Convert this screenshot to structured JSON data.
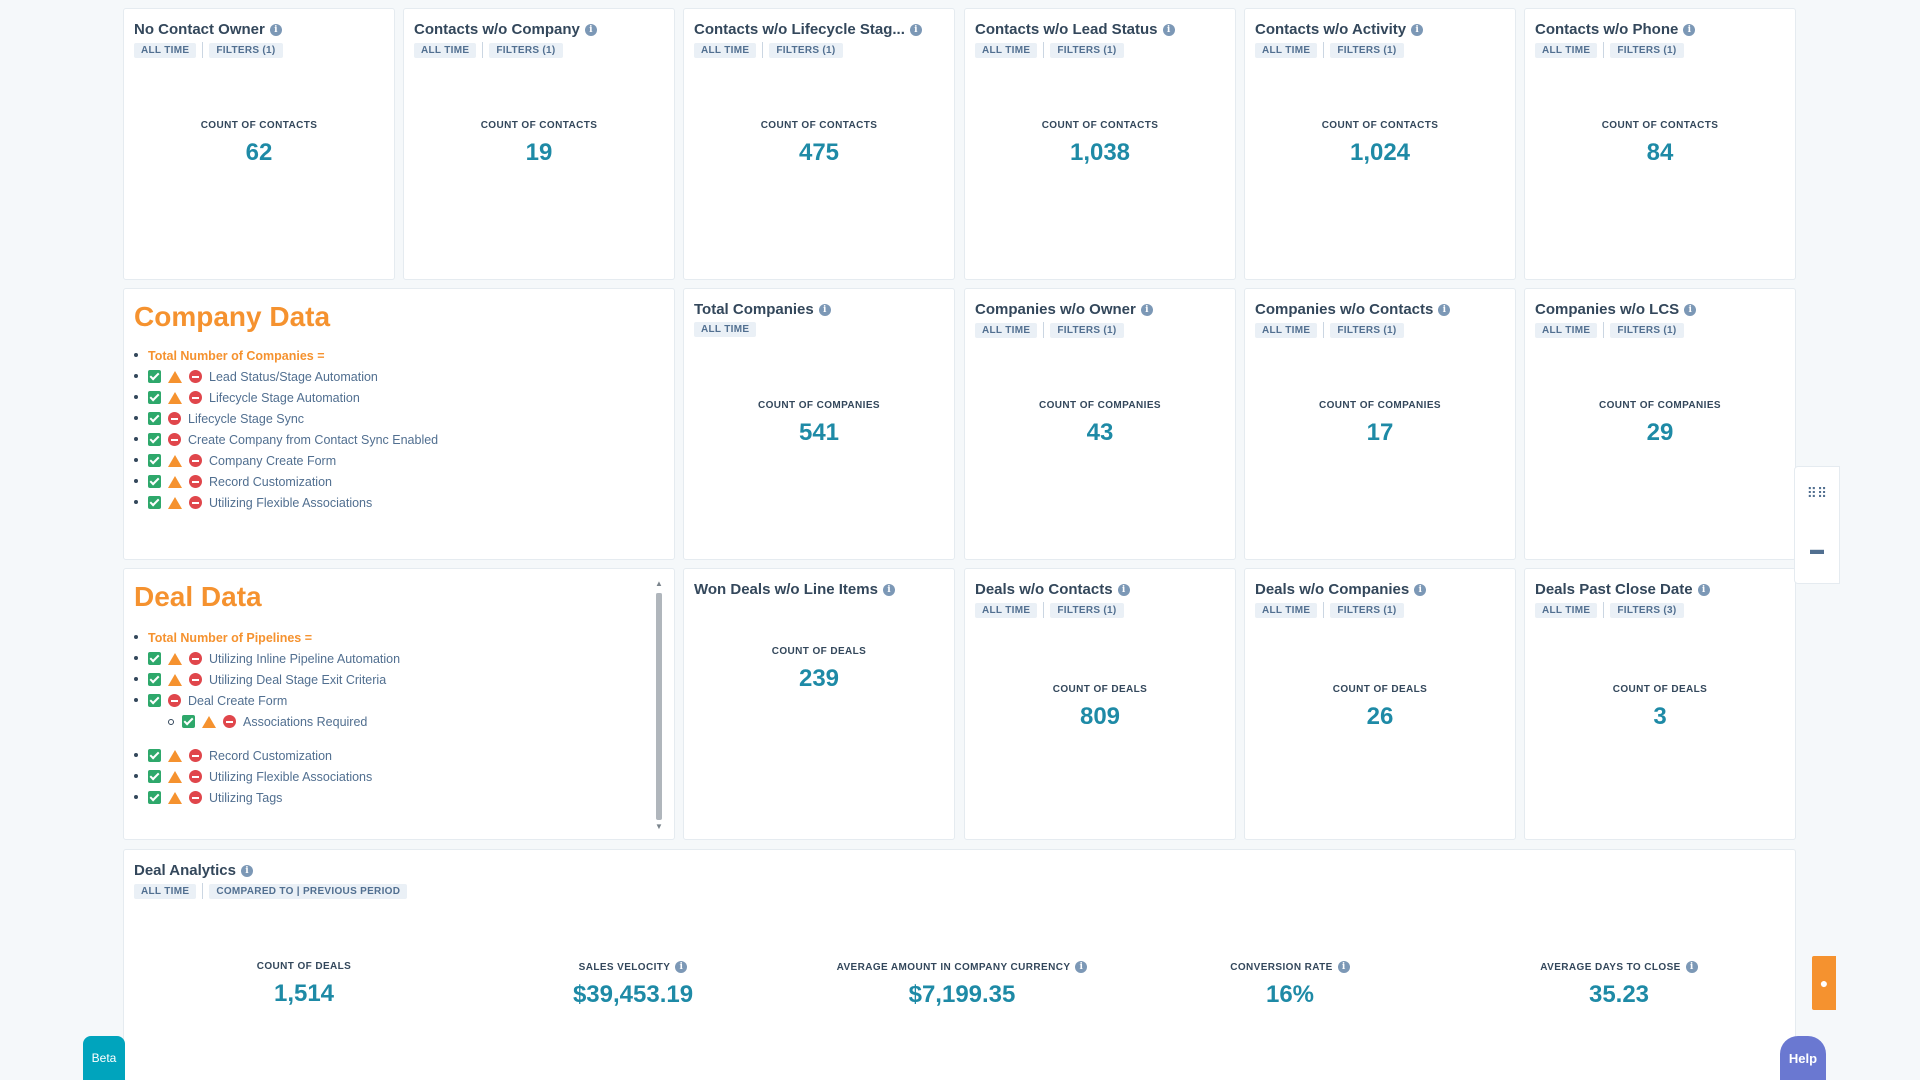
{
  "row1": [
    {
      "title": "No Contact Owner",
      "pills": [
        "ALL TIME",
        "FILTERS (1)"
      ],
      "label": "COUNT OF CONTACTS",
      "value": "62"
    },
    {
      "title": "Contacts w/o Company",
      "pills": [
        "ALL TIME",
        "FILTERS (1)"
      ],
      "label": "COUNT OF CONTACTS",
      "value": "19"
    },
    {
      "title": "Contacts w/o Lifecycle Stag...",
      "pills": [
        "ALL TIME",
        "FILTERS (1)"
      ],
      "label": "COUNT OF CONTACTS",
      "value": "475"
    },
    {
      "title": "Contacts w/o Lead Status",
      "pills": [
        "ALL TIME",
        "FILTERS (1)"
      ],
      "label": "COUNT OF CONTACTS",
      "value": "1,038"
    },
    {
      "title": "Contacts w/o Activity",
      "pills": [
        "ALL TIME",
        "FILTERS (1)"
      ],
      "label": "COUNT OF CONTACTS",
      "value": "1,024"
    },
    {
      "title": "Contacts w/o Phone",
      "pills": [
        "ALL TIME",
        "FILTERS (1)"
      ],
      "label": "COUNT OF CONTACTS",
      "value": "84"
    }
  ],
  "company_data": {
    "title": "Company Data",
    "heading": "Total Number of Companies =",
    "items": [
      {
        "label": "Lead Status/Stage Automation",
        "icons": [
          "check",
          "warn",
          "stop"
        ]
      },
      {
        "label": "Lifecycle Stage Automation",
        "icons": [
          "check",
          "warn",
          "stop"
        ]
      },
      {
        "label": "Lifecycle Stage Sync",
        "icons": [
          "check",
          "stop"
        ]
      },
      {
        "label": "Create Company from Contact Sync Enabled",
        "icons": [
          "check",
          "stop"
        ]
      },
      {
        "label": "Company Create Form",
        "icons": [
          "check",
          "warn",
          "stop"
        ]
      },
      {
        "label": "Record Customization",
        "icons": [
          "check",
          "warn",
          "stop"
        ]
      },
      {
        "label": "Utilizing Flexible Associations",
        "icons": [
          "check",
          "warn",
          "stop"
        ]
      }
    ]
  },
  "row2": [
    {
      "title": "Total Companies",
      "pills": [
        "ALL TIME"
      ],
      "label": "COUNT OF COMPANIES",
      "value": "541"
    },
    {
      "title": "Companies w/o Owner",
      "pills": [
        "ALL TIME",
        "FILTERS (1)"
      ],
      "label": "COUNT OF COMPANIES",
      "value": "43"
    },
    {
      "title": "Companies w/o Contacts",
      "pills": [
        "ALL TIME",
        "FILTERS (1)"
      ],
      "label": "COUNT OF COMPANIES",
      "value": "17"
    },
    {
      "title": "Companies w/o LCS",
      "pills": [
        "ALL TIME",
        "FILTERS (1)"
      ],
      "label": "COUNT OF COMPANIES",
      "value": "29"
    }
  ],
  "deal_data": {
    "title": "Deal Data",
    "heading": "Total Number of Pipelines =",
    "items": [
      {
        "label": "Utilizing Inline Pipeline Automation",
        "icons": [
          "check",
          "warn",
          "stop"
        ]
      },
      {
        "label": "Utilizing Deal Stage Exit Criteria",
        "icons": [
          "check",
          "warn",
          "stop"
        ]
      },
      {
        "label": "Deal Create Form",
        "icons": [
          "check",
          "stop"
        ]
      },
      {
        "label": "Associations Required",
        "icons": [
          "check",
          "warn",
          "stop"
        ],
        "sub": true
      },
      {
        "label": "Record Customization",
        "icons": [
          "check",
          "warn",
          "stop"
        ],
        "gap": true
      },
      {
        "label": "Utilizing Flexible Associations",
        "icons": [
          "check",
          "warn",
          "stop"
        ]
      },
      {
        "label": "Utilizing Tags",
        "icons": [
          "check",
          "warn",
          "stop"
        ]
      }
    ]
  },
  "row3": [
    {
      "title": "Won Deals w/o Line Items",
      "pills": [],
      "label": "COUNT OF DEALS",
      "value": "239"
    },
    {
      "title": "Deals w/o Contacts",
      "pills": [
        "ALL TIME",
        "FILTERS (1)"
      ],
      "label": "COUNT OF DEALS",
      "value": "809"
    },
    {
      "title": "Deals w/o Companies",
      "pills": [
        "ALL TIME",
        "FILTERS (1)"
      ],
      "label": "COUNT OF DEALS",
      "value": "26"
    },
    {
      "title": "Deals Past Close Date",
      "pills": [
        "ALL TIME",
        "FILTERS (3)"
      ],
      "label": "COUNT OF DEALS",
      "value": "3"
    }
  ],
  "deal_analytics": {
    "title": "Deal Analytics",
    "pills": [
      "ALL TIME",
      "COMPARED TO | PREVIOUS PERIOD"
    ],
    "metrics": [
      {
        "label": "COUNT OF DEALS",
        "value": "1,514",
        "info": false
      },
      {
        "label": "SALES VELOCITY",
        "value": "$39,453.19",
        "info": true
      },
      {
        "label": "AVERAGE AMOUNT IN COMPANY CURRENCY",
        "value": "$7,199.35",
        "info": true
      },
      {
        "label": "CONVERSION RATE",
        "value": "16%",
        "info": true
      },
      {
        "label": "AVERAGE DAYS TO CLOSE",
        "value": "35.23",
        "info": true
      }
    ]
  },
  "widgets": {
    "beta_label": "Beta",
    "help_label": "Help",
    "grid_icon": "grid-icon",
    "chat_icon": "chat-icon"
  },
  "colors": {
    "accent_value": "#1e8aa6",
    "section_title": "#f5922f",
    "check": "#2ea86b",
    "warn": "#f5922f",
    "stop": "#e0464b"
  }
}
